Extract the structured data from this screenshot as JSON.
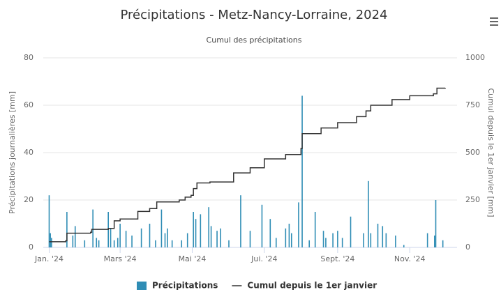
{
  "chart_data": {
    "type": "bar-line",
    "title": "Précipitations - Metz-Nancy-Lorraine, 2024",
    "subtitle": "Cumul des précipitations",
    "y_label": "Précipitations journalières [mm]",
    "y2_label": "Cumul depuis le 1er janvier [mm]",
    "xlim": [
      -5,
      345
    ],
    "xticks": [
      {
        "value": 0,
        "label": "Jan. '24"
      },
      {
        "value": 60,
        "label": "Mars '24"
      },
      {
        "value": 121,
        "label": "Mai '24"
      },
      {
        "value": 182,
        "label": "Jui. '24"
      },
      {
        "value": 244,
        "label": "Sept. '24"
      },
      {
        "value": 305,
        "label": "Nov. '24"
      }
    ],
    "ylim": [
      0,
      80
    ],
    "yticks": [
      0,
      20,
      40,
      60,
      80
    ],
    "y2lim": [
      0,
      1000
    ],
    "y2ticks": [
      0,
      250,
      500,
      750,
      1000
    ],
    "grid": true,
    "legend": "bottom",
    "series": [
      {
        "name": "Précipitations",
        "type": "bar",
        "color": "#2f8db5",
        "x": [
          0,
          1,
          2,
          15,
          20,
          22,
          30,
          37,
          40,
          42,
          50,
          52,
          55,
          58,
          60,
          65,
          70,
          78,
          85,
          90,
          95,
          98,
          100,
          104,
          112,
          117,
          122,
          124,
          128,
          135,
          137,
          142,
          145,
          152,
          162,
          170,
          180,
          187,
          192,
          200,
          203,
          205,
          211,
          214,
          220,
          225,
          232,
          234,
          240,
          244,
          248,
          255,
          266,
          270,
          272,
          278,
          282,
          285,
          293,
          300,
          320,
          326,
          327,
          333
        ],
        "values": [
          22,
          6,
          4,
          15,
          5,
          9,
          3,
          16,
          4,
          3,
          15,
          8,
          3,
          4,
          10,
          7,
          5,
          8,
          10,
          3,
          16,
          6,
          8,
          3,
          3,
          6,
          15,
          12,
          14,
          17,
          9,
          7,
          8,
          3,
          22,
          7,
          18,
          12,
          4,
          8,
          10,
          6,
          19,
          64,
          3,
          15,
          7,
          4,
          6,
          7,
          4,
          13,
          6,
          28,
          6,
          10,
          9,
          6,
          5,
          1,
          6,
          5,
          20,
          3
        ]
      },
      {
        "name": "Cumul depuis le 1er janvier",
        "type": "line",
        "axis": "y2",
        "color": "#333333",
        "x": [
          0,
          14,
          15,
          35,
          36,
          50,
          55,
          60,
          75,
          85,
          91,
          110,
          115,
          120,
          122,
          125,
          136,
          156,
          170,
          182,
          200,
          213,
          214,
          230,
          244,
          260,
          268,
          272,
          290,
          305,
          325,
          328,
          335
        ],
        "values": [
          30,
          35,
          75,
          80,
          95,
          100,
          140,
          150,
          190,
          205,
          240,
          250,
          265,
          275,
          310,
          340,
          345,
          393,
          420,
          467,
          490,
          522,
          600,
          630,
          658,
          690,
          720,
          750,
          780,
          800,
          810,
          840,
          842
        ]
      }
    ]
  }
}
